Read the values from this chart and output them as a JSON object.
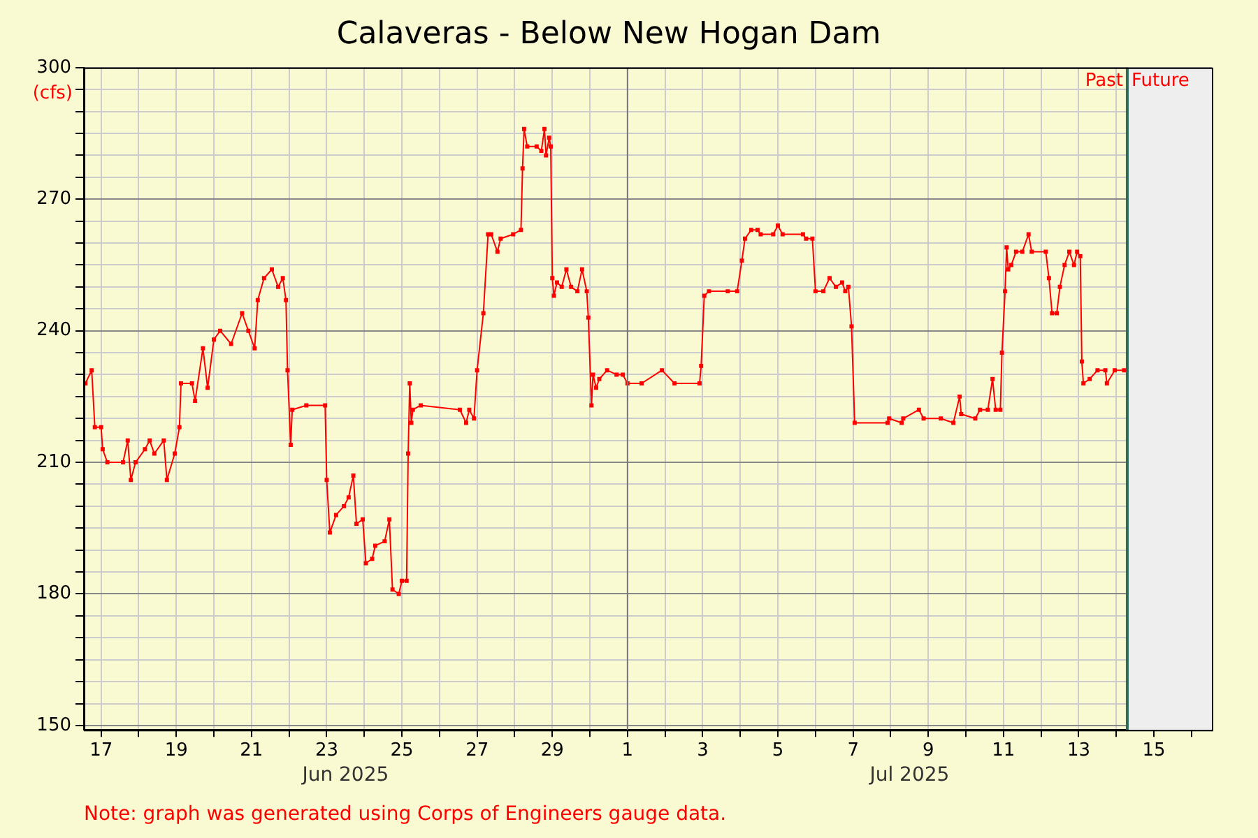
{
  "chart_data": {
    "type": "line",
    "title": "Calaveras - Below New Hogan Dam",
    "ylabel": "(cfs)",
    "color": "#ff0000",
    "marker": "square",
    "line_style": "solid",
    "grid": true,
    "legend": false,
    "x": [
      "2025-06-16T14:00",
      "2025-06-16T18:00",
      "2025-06-16T20:00",
      "2025-06-17T00:00",
      "2025-06-17T01:00",
      "2025-06-17T04:00",
      "2025-06-17T14:00",
      "2025-06-17T17:00",
      "2025-06-17T19:00",
      "2025-06-17T22:00",
      "2025-06-18T04:00",
      "2025-06-18T07:00",
      "2025-06-18T10:00",
      "2025-06-18T16:00",
      "2025-06-18T18:00",
      "2025-06-18T23:00",
      "2025-06-19T02:00",
      "2025-06-19T03:00",
      "2025-06-19T10:00",
      "2025-06-19T12:00",
      "2025-06-19T17:00",
      "2025-06-19T20:00",
      "2025-06-20T00:00",
      "2025-06-20T04:00",
      "2025-06-20T11:00",
      "2025-06-20T18:00",
      "2025-06-20T22:00",
      "2025-06-21T02:00",
      "2025-06-21T04:00",
      "2025-06-21T08:00",
      "2025-06-21T13:00",
      "2025-06-21T17:00",
      "2025-06-21T20:00",
      "2025-06-21T22:00",
      "2025-06-21T23:00",
      "2025-06-22T01:00",
      "2025-06-22T02:00",
      "2025-06-22T11:00",
      "2025-06-22T23:00",
      "2025-06-23T00:00",
      "2025-06-23T02:00",
      "2025-06-23T06:00",
      "2025-06-23T11:00",
      "2025-06-23T14:00",
      "2025-06-23T17:00",
      "2025-06-23T19:00",
      "2025-06-23T23:00",
      "2025-06-24T01:00",
      "2025-06-24T05:00",
      "2025-06-24T07:00",
      "2025-06-24T13:00",
      "2025-06-24T16:00",
      "2025-06-24T18:00",
      "2025-06-24T22:00",
      "2025-06-25T00:00",
      "2025-06-25T03:00",
      "2025-06-25T04:00",
      "2025-06-25T05:00",
      "2025-06-25T06:00",
      "2025-06-25T07:00",
      "2025-06-25T12:00",
      "2025-06-26T13:00",
      "2025-06-26T17:00",
      "2025-06-26T19:00",
      "2025-06-26T22:00",
      "2025-06-27T00:00",
      "2025-06-27T04:00",
      "2025-06-27T07:00",
      "2025-06-27T09:00",
      "2025-06-27T13:00",
      "2025-06-27T15:00",
      "2025-06-27T23:00",
      "2025-06-28T04:00",
      "2025-06-28T05:00",
      "2025-06-28T06:00",
      "2025-06-28T08:00",
      "2025-06-28T14:00",
      "2025-06-28T17:00",
      "2025-06-28T19:00",
      "2025-06-28T20:00",
      "2025-06-28T22:00",
      "2025-06-28T23:00",
      "2025-06-29T00:00",
      "2025-06-29T01:00",
      "2025-06-29T03:00",
      "2025-06-29T06:00",
      "2025-06-29T09:00",
      "2025-06-29T12:00",
      "2025-06-29T16:00",
      "2025-06-29T19:00",
      "2025-06-29T22:00",
      "2025-06-29T23:00",
      "2025-06-30T01:00",
      "2025-06-30T02:00",
      "2025-06-30T04:00",
      "2025-06-30T06:00",
      "2025-06-30T11:00",
      "2025-06-30T17:00",
      "2025-06-30T21:00",
      "2025-07-01T00:00",
      "2025-07-01T09:00",
      "2025-07-01T22:00",
      "2025-07-02T06:00",
      "2025-07-02T22:00",
      "2025-07-02T23:00",
      "2025-07-03T01:00",
      "2025-07-03T04:00",
      "2025-07-03T16:00",
      "2025-07-03T22:00",
      "2025-07-04T01:00",
      "2025-07-04T03:00",
      "2025-07-04T07:00",
      "2025-07-04T11:00",
      "2025-07-04T13:00",
      "2025-07-04T21:00",
      "2025-07-05T00:00",
      "2025-07-05T03:00",
      "2025-07-05T16:00",
      "2025-07-05T18:00",
      "2025-07-05T22:00",
      "2025-07-06T00:00",
      "2025-07-06T05:00",
      "2025-07-06T09:00",
      "2025-07-06T13:00",
      "2025-07-06T17:00",
      "2025-07-06T19:00",
      "2025-07-06T21:00",
      "2025-07-06T23:00",
      "2025-07-07T01:00",
      "2025-07-07T22:00",
      "2025-07-07T23:00",
      "2025-07-08T07:00",
      "2025-07-08T08:00",
      "2025-07-08T18:00",
      "2025-07-08T21:00",
      "2025-07-09T08:00",
      "2025-07-09T16:00",
      "2025-07-09T20:00",
      "2025-07-09T21:00",
      "2025-07-10T06:00",
      "2025-07-10T09:00",
      "2025-07-10T14:00",
      "2025-07-10T17:00",
      "2025-07-10T19:00",
      "2025-07-10T22:00",
      "2025-07-10T23:00",
      "2025-07-11T01:00",
      "2025-07-11T02:00",
      "2025-07-11T03:00",
      "2025-07-11T05:00",
      "2025-07-11T08:00",
      "2025-07-11T12:00",
      "2025-07-11T16:00",
      "2025-07-11T18:00",
      "2025-07-12T03:00",
      "2025-07-12T05:00",
      "2025-07-12T07:00",
      "2025-07-12T10:00",
      "2025-07-12T12:00",
      "2025-07-12T15:00",
      "2025-07-12T18:00",
      "2025-07-12T21:00",
      "2025-07-12T23:00",
      "2025-07-13T01:00",
      "2025-07-13T02:00",
      "2025-07-13T03:00",
      "2025-07-13T07:00",
      "2025-07-13T12:00",
      "2025-07-13T17:00",
      "2025-07-13T18:00",
      "2025-07-13T23:00",
      "2025-07-14T05:00"
    ],
    "values": [
      228,
      231,
      218,
      218,
      213,
      210,
      210,
      215,
      206,
      210,
      213,
      215,
      212,
      215,
      206,
      212,
      218,
      228,
      228,
      224,
      236,
      227,
      238,
      240,
      237,
      244,
      240,
      236,
      247,
      252,
      254,
      250,
      252,
      247,
      231,
      214,
      222,
      223,
      223,
      206,
      194,
      198,
      200,
      202,
      207,
      196,
      197,
      187,
      188,
      191,
      192,
      197,
      181,
      180,
      183,
      183,
      212,
      228,
      219,
      222,
      223,
      222,
      219,
      222,
      220,
      231,
      244,
      262,
      262,
      258,
      261,
      262,
      263,
      277,
      286,
      282,
      282,
      281,
      286,
      280,
      284,
      282,
      252,
      248,
      251,
      250,
      254,
      250,
      249,
      254,
      249,
      243,
      223,
      230,
      227,
      229,
      231,
      230,
      230,
      228,
      228,
      231,
      228,
      228,
      232,
      248,
      249,
      249,
      249,
      256,
      261,
      263,
      263,
      262,
      262,
      264,
      262,
      262,
      261,
      261,
      249,
      249,
      252,
      250,
      251,
      249,
      250,
      241,
      219,
      219,
      220,
      219,
      220,
      222,
      220,
      220,
      219,
      225,
      221,
      220,
      222,
      222,
      229,
      222,
      222,
      235,
      249,
      259,
      254,
      255,
      258,
      258,
      262,
      258,
      258,
      252,
      244,
      244,
      250,
      255,
      258,
      255,
      258,
      257,
      233,
      228,
      229,
      231,
      231,
      228,
      231,
      231
    ],
    "xlim": [
      "2025-06-16T13:00",
      "2025-07-16T13:00"
    ],
    "xticks": [
      {
        "value": "2025-06-17",
        "label": "17"
      },
      {
        "value": "2025-06-18",
        "label": null
      },
      {
        "value": "2025-06-19",
        "label": "19"
      },
      {
        "value": "2025-06-20",
        "label": null
      },
      {
        "value": "2025-06-21",
        "label": "21"
      },
      {
        "value": "2025-06-22",
        "label": null
      },
      {
        "value": "2025-06-23",
        "label": "23"
      },
      {
        "value": "2025-06-24",
        "label": null
      },
      {
        "value": "2025-06-25",
        "label": "25"
      },
      {
        "value": "2025-06-26",
        "label": null
      },
      {
        "value": "2025-06-27",
        "label": "27"
      },
      {
        "value": "2025-06-28",
        "label": null
      },
      {
        "value": "2025-06-29",
        "label": "29"
      },
      {
        "value": "2025-06-30",
        "label": null
      },
      {
        "value": "2025-07-01",
        "label": "1"
      },
      {
        "value": "2025-07-02",
        "label": null
      },
      {
        "value": "2025-07-03",
        "label": "3"
      },
      {
        "value": "2025-07-04",
        "label": null
      },
      {
        "value": "2025-07-05",
        "label": "5"
      },
      {
        "value": "2025-07-06",
        "label": null
      },
      {
        "value": "2025-07-07",
        "label": "7"
      },
      {
        "value": "2025-07-08",
        "label": null
      },
      {
        "value": "2025-07-09",
        "label": "9"
      },
      {
        "value": "2025-07-10",
        "label": null
      },
      {
        "value": "2025-07-11",
        "label": "11"
      },
      {
        "value": "2025-07-12",
        "label": null
      },
      {
        "value": "2025-07-13",
        "label": "13"
      },
      {
        "value": "2025-07-14",
        "label": null
      },
      {
        "value": "2025-07-15",
        "label": "15"
      },
      {
        "value": "2025-07-16",
        "label": null
      }
    ],
    "x2lim": [
      "2025-06-16T13:00",
      "2025-07-16T13:00"
    ],
    "x2ticks": [
      {
        "value": "2025-06-23T12:00",
        "label": "Jun 2025"
      },
      {
        "value": "2025-07-08T12:00",
        "label": "Jul 2025"
      }
    ],
    "ylim": [
      149,
      300
    ],
    "yticks": [
      150,
      {
        "value": 155,
        "label": null
      },
      {
        "value": 160,
        "label": null
      },
      {
        "value": 165,
        "label": null
      },
      {
        "value": 170,
        "label": null
      },
      {
        "value": 175,
        "label": null
      },
      180,
      {
        "value": 185,
        "label": null
      },
      {
        "value": 190,
        "label": null
      },
      {
        "value": 195,
        "label": null
      },
      {
        "value": 200,
        "label": null
      },
      {
        "value": 205,
        "label": null
      },
      210,
      {
        "value": 215,
        "label": null
      },
      {
        "value": 220,
        "label": null
      },
      {
        "value": 225,
        "label": null
      },
      {
        "value": 230,
        "label": null
      },
      {
        "value": 235,
        "label": null
      },
      240,
      {
        "value": 245,
        "label": null
      },
      {
        "value": 250,
        "label": null
      },
      {
        "value": 255,
        "label": null
      },
      {
        "value": 260,
        "label": null
      },
      {
        "value": 265,
        "label": null
      },
      270,
      {
        "value": 275,
        "label": null
      },
      {
        "value": 280,
        "label": null
      },
      {
        "value": 285,
        "label": null
      },
      {
        "value": 290,
        "label": null
      },
      {
        "value": 295,
        "label": null
      },
      300
    ],
    "ref_lines": [
      {
        "axis": "x",
        "value": "2025-07-01",
        "color": "#777777"
      },
      {
        "axis": "x",
        "value": "2025-07-14T07:00",
        "label": "Past",
        "color": "#2e6b5a"
      }
    ],
    "bands": [
      {
        "axis": "x",
        "from": "2025-07-14T07:00",
        "to": "2025-07-16T13:00",
        "label": "Future",
        "color": "#eeeeee"
      }
    ],
    "annotations": [
      "Note: graph was generated using Corps of Engineers gauge data."
    ]
  }
}
